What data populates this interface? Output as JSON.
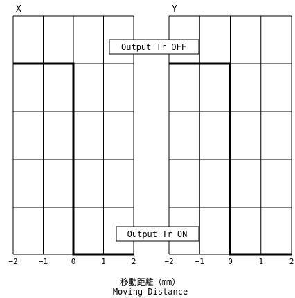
{
  "labels": {
    "off": "Output Tr OFF",
    "on": "Output Tr ON",
    "xlabel_jp": "移動距離（mm）",
    "xlabel_en": "Moving Distance"
  },
  "chart_data": [
    {
      "type": "line",
      "title": "X",
      "xlabel": "移動距離（mm） Moving Distance",
      "xlim": [
        -2,
        2
      ],
      "xticks": [
        "−2",
        "−1",
        "0",
        "1",
        "2"
      ],
      "grid": true,
      "levels": [
        "Output Tr ON",
        "Output Tr OFF"
      ],
      "series": [
        {
          "x": [
            -2,
            0,
            0,
            2
          ],
          "y": [
            "Output Tr OFF",
            "Output Tr OFF",
            "Output Tr ON",
            "Output Tr ON"
          ]
        }
      ]
    },
    {
      "type": "line",
      "title": "Y",
      "xlabel": "移動距離（mm） Moving Distance",
      "xlim": [
        -2,
        2
      ],
      "xticks": [
        "−2",
        "−1",
        "0",
        "1",
        "2"
      ],
      "grid": true,
      "levels": [
        "Output Tr ON",
        "Output Tr OFF"
      ],
      "series": [
        {
          "x": [
            -2,
            0,
            0,
            2
          ],
          "y": [
            "Output Tr OFF",
            "Output Tr OFF",
            "Output Tr ON",
            "Output Tr ON"
          ]
        }
      ]
    }
  ]
}
